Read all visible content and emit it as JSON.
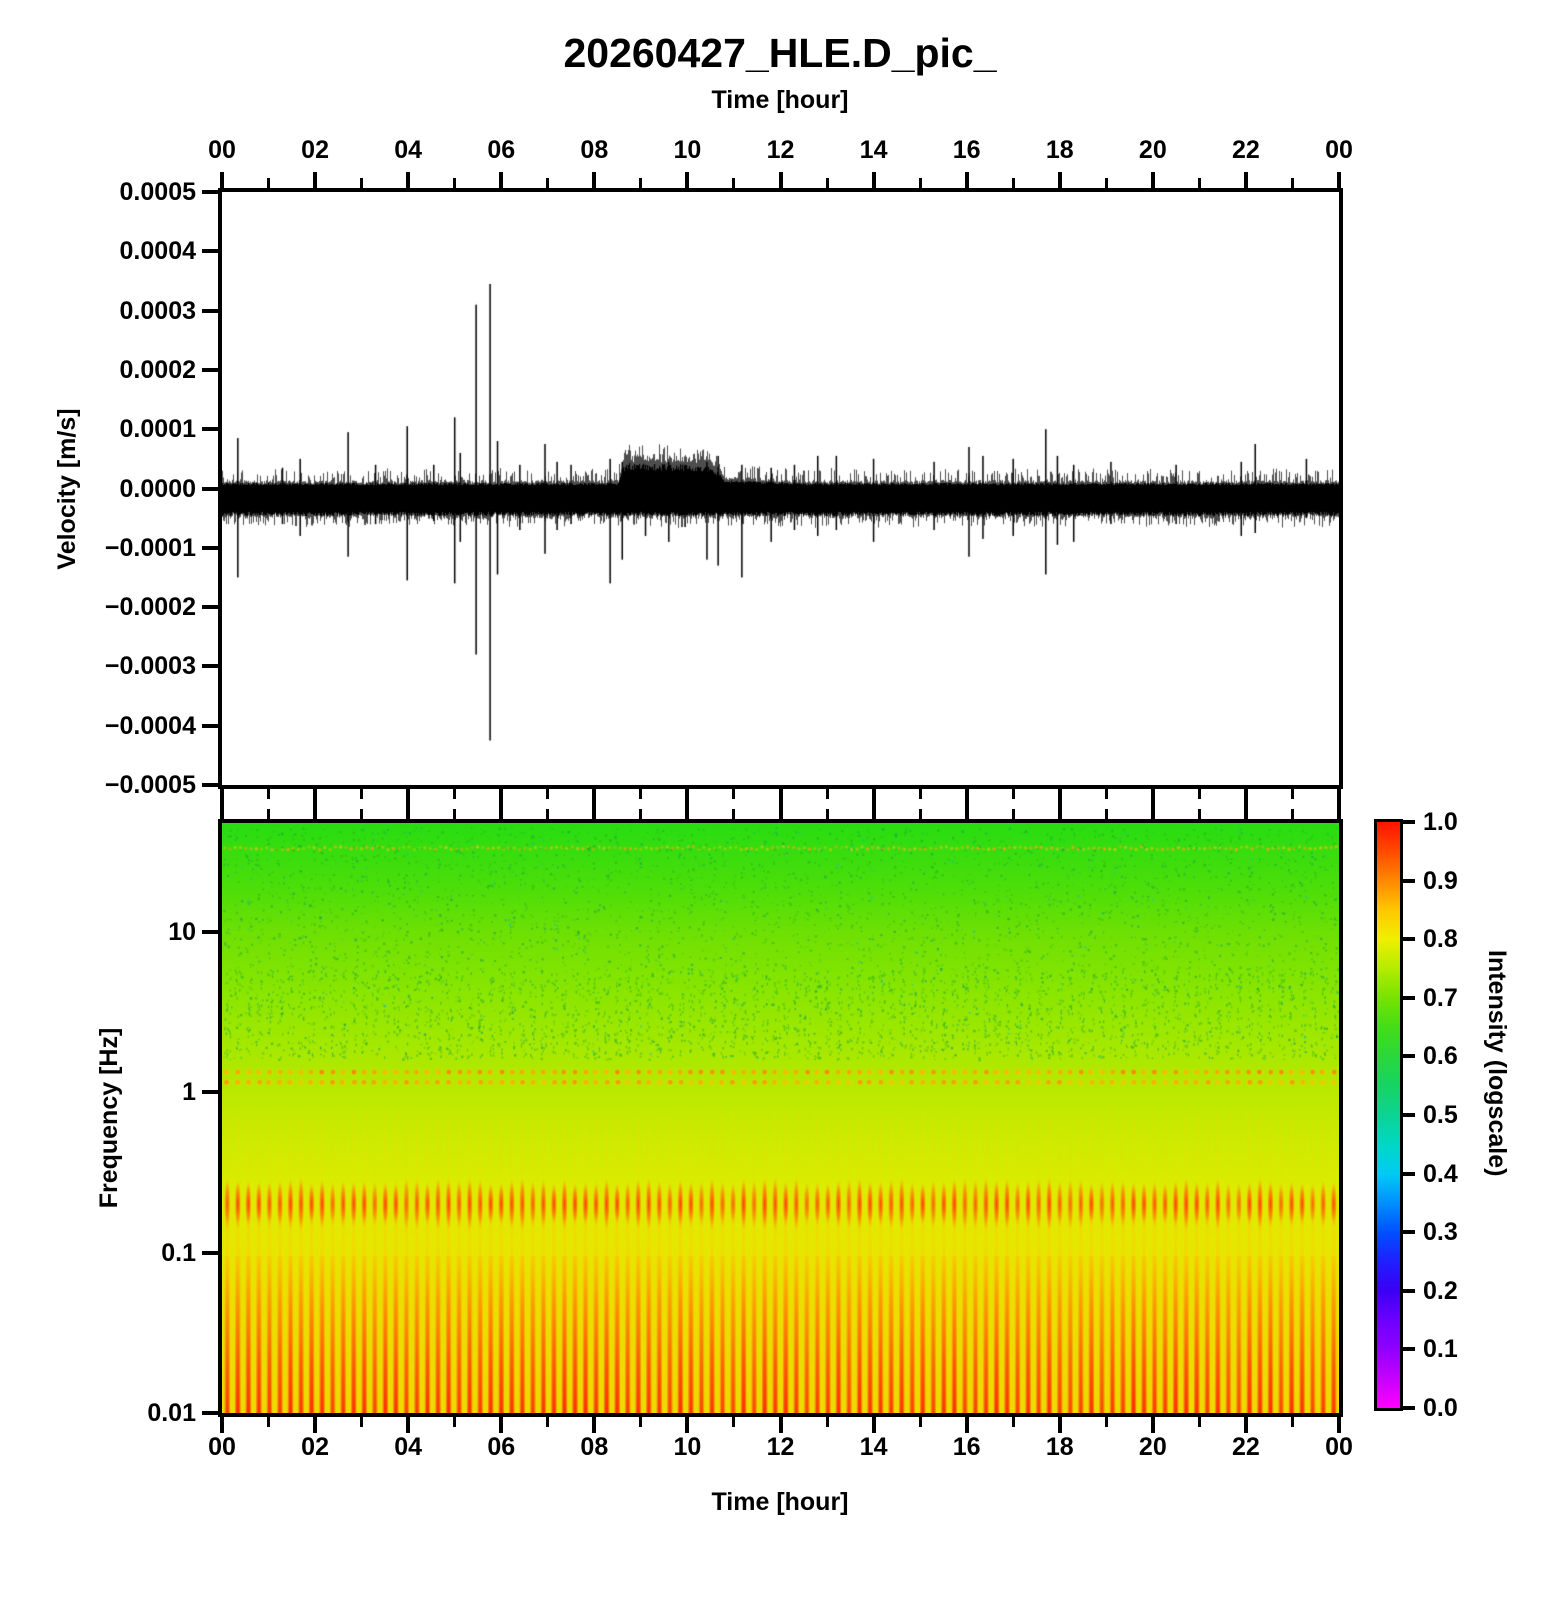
{
  "title": "20260427_HLE.D_pic_",
  "axes": {
    "top": {
      "label": "Time [hour]",
      "labels": [
        "00",
        "02",
        "04",
        "06",
        "08",
        "10",
        "12",
        "14",
        "16",
        "18",
        "20",
        "22",
        "00"
      ]
    },
    "bottom": {
      "label": "Time [hour]",
      "labels": [
        "00",
        "02",
        "04",
        "06",
        "08",
        "10",
        "12",
        "14",
        "16",
        "18",
        "20",
        "22",
        "00"
      ]
    },
    "wave_y": {
      "label": "Velocity [m/s]",
      "labels": [
        "0.0005",
        "0.0004",
        "0.0003",
        "0.0002",
        "0.0001",
        "0.0000",
        "−0.0001",
        "−0.0002",
        "−0.0003",
        "−0.0004",
        "−0.0005"
      ]
    },
    "freq": {
      "label": "Frequency [Hz]",
      "labels": [
        "10",
        "1",
        "0.1",
        "0.01"
      ]
    }
  },
  "colorbar": {
    "label": "Intensity (logscale)",
    "tick_labels": [
      "1.0",
      "0.9",
      "0.8",
      "0.7",
      "0.6",
      "0.5",
      "0.4",
      "0.3",
      "0.2",
      "0.1",
      "0.0"
    ],
    "stops": [
      [
        1.0,
        "#ff1400"
      ],
      [
        0.95,
        "#ff4a00"
      ],
      [
        0.9,
        "#ff8800"
      ],
      [
        0.85,
        "#ffc800"
      ],
      [
        0.8,
        "#f0f000"
      ],
      [
        0.75,
        "#b4ec00"
      ],
      [
        0.7,
        "#78e400"
      ],
      [
        0.65,
        "#44dd16"
      ],
      [
        0.6,
        "#2ad83c"
      ],
      [
        0.55,
        "#16d464"
      ],
      [
        0.5,
        "#0cd494"
      ],
      [
        0.45,
        "#00d8c4"
      ],
      [
        0.4,
        "#00ccf4"
      ],
      [
        0.35,
        "#0090ff"
      ],
      [
        0.3,
        "#0050ff"
      ],
      [
        0.25,
        "#2020ff"
      ],
      [
        0.2,
        "#3c00f4"
      ],
      [
        0.15,
        "#6c00ff"
      ],
      [
        0.1,
        "#9000ff"
      ],
      [
        0.05,
        "#c800ff"
      ],
      [
        0.0,
        "#ff00ff"
      ]
    ]
  },
  "chart_data": [
    {
      "type": "line",
      "title": "20260427_HLE.D_pic_",
      "xlabel": "Time [hour]",
      "ylabel": "Velocity [m/s]",
      "x_range_hours": [
        0,
        24
      ],
      "ylim": [
        -0.0005,
        0.0005
      ],
      "ytick_step": 0.0001,
      "noise_band_x1e4": {
        "solid_top": 0.06,
        "solid_bottom": -0.4,
        "hair_top": 0.22,
        "hair_bottom": -0.52
      },
      "event_envelope": {
        "start_hour": 8.5,
        "end_hour": 12.5,
        "plateau_amp_x1e4": 0.3
      },
      "spikes_hour_up_down_x1e4": [
        [
          0.34,
          0.85,
          -1.5
        ],
        [
          1.3,
          0.35,
          -0.6
        ],
        [
          1.68,
          0.5,
          -0.8
        ],
        [
          2.71,
          0.95,
          -1.15
        ],
        [
          3.3,
          0.4,
          -0.6
        ],
        [
          3.98,
          1.05,
          -1.55
        ],
        [
          4.55,
          0.4,
          -0.55
        ],
        [
          5.0,
          1.2,
          -1.6
        ],
        [
          5.12,
          0.6,
          -0.9
        ],
        [
          5.46,
          3.1,
          -2.8
        ],
        [
          5.76,
          3.45,
          -4.25
        ],
        [
          5.92,
          0.8,
          -1.45
        ],
        [
          6.4,
          0.4,
          -0.7
        ],
        [
          6.94,
          0.75,
          -1.1
        ],
        [
          7.2,
          0.45,
          -0.7
        ],
        [
          7.5,
          0.4,
          -0.6
        ],
        [
          8.34,
          0.5,
          -1.6
        ],
        [
          8.6,
          0.45,
          -1.2
        ],
        [
          9.1,
          0.4,
          -0.8
        ],
        [
          9.6,
          0.45,
          -0.9
        ],
        [
          9.95,
          0.4,
          -0.65
        ],
        [
          10.42,
          0.45,
          -1.2
        ],
        [
          10.66,
          0.55,
          -1.3
        ],
        [
          11.17,
          0.4,
          -1.5
        ],
        [
          11.8,
          0.35,
          -0.9
        ],
        [
          12.3,
          0.4,
          -0.7
        ],
        [
          12.8,
          0.55,
          -0.8
        ],
        [
          13.2,
          0.55,
          -0.7
        ],
        [
          14.0,
          0.5,
          -0.9
        ],
        [
          15.3,
          0.45,
          -0.7
        ],
        [
          16.05,
          0.7,
          -1.15
        ],
        [
          16.35,
          0.55,
          -0.85
        ],
        [
          17.0,
          0.5,
          -0.8
        ],
        [
          17.7,
          1.0,
          -1.45
        ],
        [
          17.95,
          0.55,
          -0.95
        ],
        [
          18.3,
          0.4,
          -0.9
        ],
        [
          19.1,
          0.45,
          -0.6
        ],
        [
          20.5,
          0.4,
          -0.6
        ],
        [
          21.9,
          0.45,
          -0.8
        ],
        [
          22.2,
          0.75,
          -0.75
        ],
        [
          23.3,
          0.5,
          -0.5
        ]
      ]
    },
    {
      "type": "heatmap",
      "xlabel": "Time [hour]",
      "ylabel": "Frequency [Hz]",
      "colorbar_label": "Intensity (logscale)",
      "x_range_hours": [
        0,
        24
      ],
      "freq_range_hz": [
        0.01,
        47
      ],
      "intensity_range": [
        0.0,
        1.0
      ],
      "stripe_count": 106,
      "background_stops_hz_color": [
        [
          47,
          "#28dd12"
        ],
        [
          20,
          "#4ade0a"
        ],
        [
          10,
          "#6ee004"
        ],
        [
          4,
          "#8ce600"
        ],
        [
          2,
          "#a4e800"
        ],
        [
          1,
          "#bce900"
        ],
        [
          0.5,
          "#cdeb00"
        ],
        [
          0.25,
          "#dcec00"
        ],
        [
          0.12,
          "#e6e800"
        ],
        [
          0.05,
          "#ecdf00"
        ],
        [
          0.01,
          "#eeda00"
        ]
      ],
      "features": {
        "low_freq_red_stripes_top_hz": 0.095,
        "microseism_blob_row_hz": 0.2,
        "dot_rows_hz": [
          1.33,
          1.15
        ],
        "top_dot_row_hz": 33,
        "speckle_band_hz": [
          1.6,
          45
        ]
      }
    }
  ]
}
